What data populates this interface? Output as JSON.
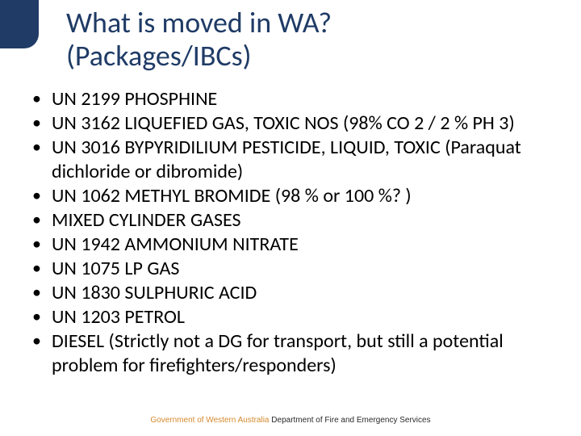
{
  "colors": {
    "background": "#ffffff",
    "title_color": "#1f3b66",
    "corner_block": "#1f3b66",
    "bullet_text": "#000000",
    "footer_orange": "#d58a2e",
    "footer_dark": "#2a2a2a"
  },
  "typography": {
    "title_fontsize": 36,
    "bullet_fontsize": 24,
    "footer_fontsize": 10,
    "font_family": "Calibri, Arial, sans-serif"
  },
  "title": {
    "line1": "What is moved in WA?",
    "line2": "(Packages/IBCs)"
  },
  "bullets": [
    "UN 2199 PHOSPHINE",
    "UN 3162 LIQUEFIED GAS, TOXIC NOS (98% CO 2 / 2 % PH 3)",
    "UN  3016 BYPYRIDILIUM PESTICIDE, LIQUID, TOXIC (Paraquat dichloride or dibromide)",
    "UN 1062 METHYL BROMIDE (98 % or 100 %? )",
    "MIXED CYLINDER GASES",
    "UN 1942 AMMONIUM NITRATE",
    "UN 1075 LP GAS",
    "UN 1830 SULPHURIC ACID",
    "UN 1203 PETROL",
    "DIESEL (Strictly not a DG for transport, but still a potential problem for firefighters/responders)"
  ],
  "footer": {
    "part1": "Government of Western Australia ",
    "part2": "Department of Fire and Emergency Services"
  }
}
